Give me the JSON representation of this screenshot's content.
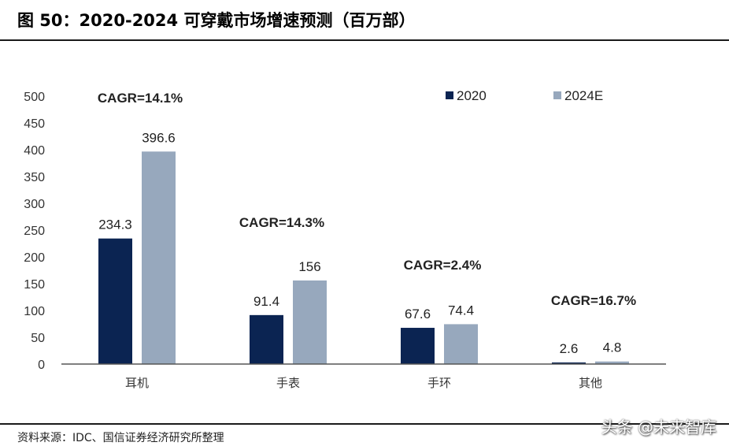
{
  "title": "图 50：2020-2024 可穿戴市场增速预测（百万部）",
  "source": "资料来源：IDC、国信证券经济研究所整理",
  "watermark": "头条 @未来智库",
  "colors": {
    "s2020": "#0b2452",
    "s2024": "#97a8bd",
    "axis": "#555555"
  },
  "chart_data": {
    "type": "bar",
    "categories": [
      "耳机",
      "手表",
      "手环",
      "其他"
    ],
    "series": [
      {
        "name": "2020",
        "values": [
          234.3,
          91.4,
          67.6,
          2.6
        ]
      },
      {
        "name": "2024E",
        "values": [
          396.6,
          156,
          74.4,
          4.8
        ]
      }
    ],
    "value_labels": [
      [
        "234.3",
        "91.4",
        "67.6",
        "2.6"
      ],
      [
        "396.6",
        "156",
        "74.4",
        "4.8"
      ]
    ],
    "annotations": [
      "CAGR=14.1%",
      "CAGR=14.3%",
      "CAGR=2.4%",
      "CAGR=16.7%"
    ],
    "yticks": [
      "0",
      "50",
      "100",
      "150",
      "200",
      "250",
      "300",
      "350",
      "400",
      "450",
      "500"
    ],
    "ylim": [
      0,
      500
    ],
    "grid": false,
    "legend": "top-right"
  }
}
